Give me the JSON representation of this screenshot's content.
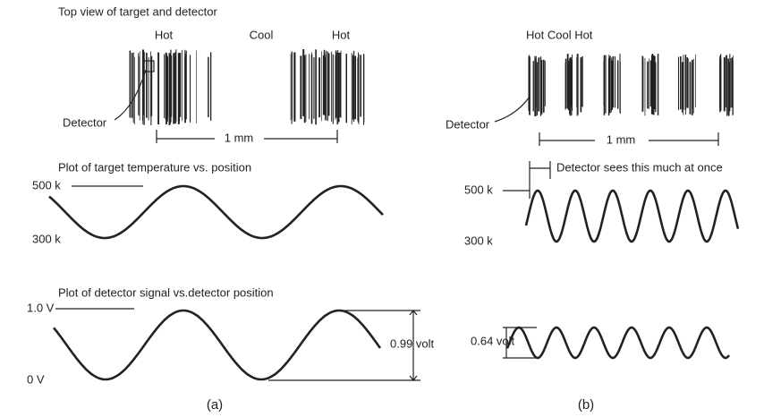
{
  "panel_a": {
    "top_view_title": "Top view of target and detector",
    "zone_labels": [
      "Hot",
      "Cool",
      "Hot"
    ],
    "detector_label": "Detector",
    "distance_label": "1 mm",
    "temperature_plot_title": "Plot of target temperature vs. position",
    "temperature_high": "500 k",
    "temperature_low": "300 k",
    "signal_plot_title": "Plot of detector signal vs.detector position",
    "signal_high": "1.0 V",
    "signal_low": "0 V",
    "amplitude_label": "0.99 volt",
    "caption": "(a)"
  },
  "panel_b": {
    "zone_labels": "Hot Cool Hot",
    "detector_label": "Detector",
    "distance_label": "1 mm",
    "detector_field_label": "Detector sees this much at once",
    "temperature_high": "500 k",
    "temperature_low": "300 k",
    "amplitude_label": "0.64 volt",
    "caption": "(b)"
  }
}
